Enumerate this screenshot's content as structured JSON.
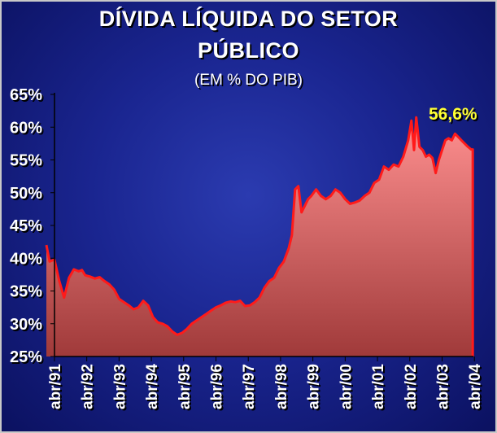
{
  "title_line1": "DÍVIDA LÍQUIDA DO SETOR",
  "title_line2": "PÚBLICO",
  "subtitle": "(EM % DO PIB)",
  "colors": {
    "background": "#1a2590",
    "line": "#ff1a1a",
    "area_top": "#ff9090",
    "area_bottom": "#a03a3a",
    "text": "#ffffff",
    "annotation": "#ffff33"
  },
  "chart_data": {
    "type": "area",
    "title": "DÍVIDA LÍQUIDA DO SETOR PÚBLICO",
    "subtitle": "(EM % DO PIB)",
    "xlabel": "",
    "ylabel": "",
    "ylim": [
      25,
      65
    ],
    "yticks": [
      25,
      30,
      35,
      40,
      45,
      50,
      55,
      60,
      65
    ],
    "ytick_labels": [
      "25%",
      "30%",
      "35%",
      "40%",
      "45%",
      "50%",
      "55%",
      "60%",
      "65%"
    ],
    "xlim": [
      1991.25,
      2004.25
    ],
    "xtick_positions": [
      1991.25,
      1992.25,
      1993.25,
      1994.25,
      1995.25,
      1996.25,
      1997.25,
      1998.25,
      1999.25,
      2000.25,
      2001.25,
      2002.25,
      2003.25,
      2004.25
    ],
    "xtick_labels": [
      "abr/91",
      "abr/92",
      "abr/93",
      "abr/94",
      "abr/95",
      "abr/96",
      "abr/97",
      "abr/98",
      "abr/99",
      "abr/00",
      "abr/01",
      "abr/02",
      "abr/03",
      "abr/04"
    ],
    "grid": false,
    "legend": "none",
    "series": [
      {
        "x": [
          1991.0,
          1991.1,
          1991.25,
          1991.4,
          1991.55,
          1991.7,
          1991.85,
          1992.0,
          1992.1,
          1992.2,
          1992.35,
          1992.5,
          1992.65,
          1992.8,
          1992.95,
          1993.1,
          1993.25,
          1993.4,
          1993.55,
          1993.7,
          1993.85,
          1994.0,
          1994.15,
          1994.3,
          1994.45,
          1994.6,
          1994.75,
          1994.9,
          1995.05,
          1995.2,
          1995.35,
          1995.5,
          1995.65,
          1995.8,
          1995.95,
          1996.1,
          1996.25,
          1996.4,
          1996.55,
          1996.7,
          1996.85,
          1997.0,
          1997.15,
          1997.3,
          1997.45,
          1997.6,
          1997.75,
          1997.9,
          1998.05,
          1998.2,
          1998.35,
          1998.5,
          1998.6,
          1998.7,
          1998.8,
          1998.9,
          1999.0,
          1999.1,
          1999.2,
          1999.35,
          1999.5,
          1999.65,
          1999.8,
          1999.95,
          2000.1,
          2000.25,
          2000.4,
          2000.55,
          2000.7,
          2000.85,
          2001.0,
          2001.15,
          2001.3,
          2001.45,
          2001.6,
          2001.75,
          2001.9,
          2002.05,
          2002.2,
          2002.3,
          2002.38,
          2002.45,
          2002.55,
          2002.65,
          2002.75,
          2002.85,
          2002.95,
          2003.05,
          2003.15,
          2003.25,
          2003.35,
          2003.45,
          2003.55,
          2003.65,
          2003.75,
          2003.85,
          2003.95,
          2004.05,
          2004.15,
          2004.2
        ],
        "values": [
          42.0,
          39.5,
          39.8,
          36.5,
          34.0,
          37.0,
          38.3,
          38.0,
          38.2,
          37.4,
          37.2,
          36.9,
          37.1,
          36.5,
          36.0,
          35.2,
          33.8,
          33.3,
          32.8,
          32.2,
          32.5,
          33.5,
          32.8,
          31.0,
          30.2,
          30.0,
          29.6,
          28.8,
          28.3,
          28.6,
          29.2,
          30.0,
          30.5,
          31.0,
          31.5,
          32.0,
          32.5,
          32.8,
          33.2,
          33.4,
          33.3,
          33.5,
          32.7,
          32.8,
          33.3,
          34.0,
          35.5,
          36.5,
          37.0,
          38.5,
          39.5,
          41.5,
          43.5,
          50.5,
          51.0,
          47.0,
          48.0,
          49.0,
          49.5,
          50.5,
          49.5,
          49.0,
          49.5,
          50.5,
          50.0,
          49.0,
          48.3,
          48.5,
          48.8,
          49.5,
          50.0,
          51.5,
          52.0,
          54.0,
          53.5,
          54.3,
          54.0,
          55.5,
          58.0,
          61.0,
          56.5,
          61.5,
          57.0,
          56.5,
          55.5,
          55.8,
          55.3,
          53.0,
          55.0,
          56.5,
          58.0,
          58.3,
          58.0,
          59.0,
          58.5,
          58.0,
          57.5,
          57.0,
          56.6,
          56.6
        ]
      }
    ],
    "annotations": [
      {
        "text": "56,6%",
        "x": 2004.2,
        "y": 56.6
      }
    ]
  }
}
